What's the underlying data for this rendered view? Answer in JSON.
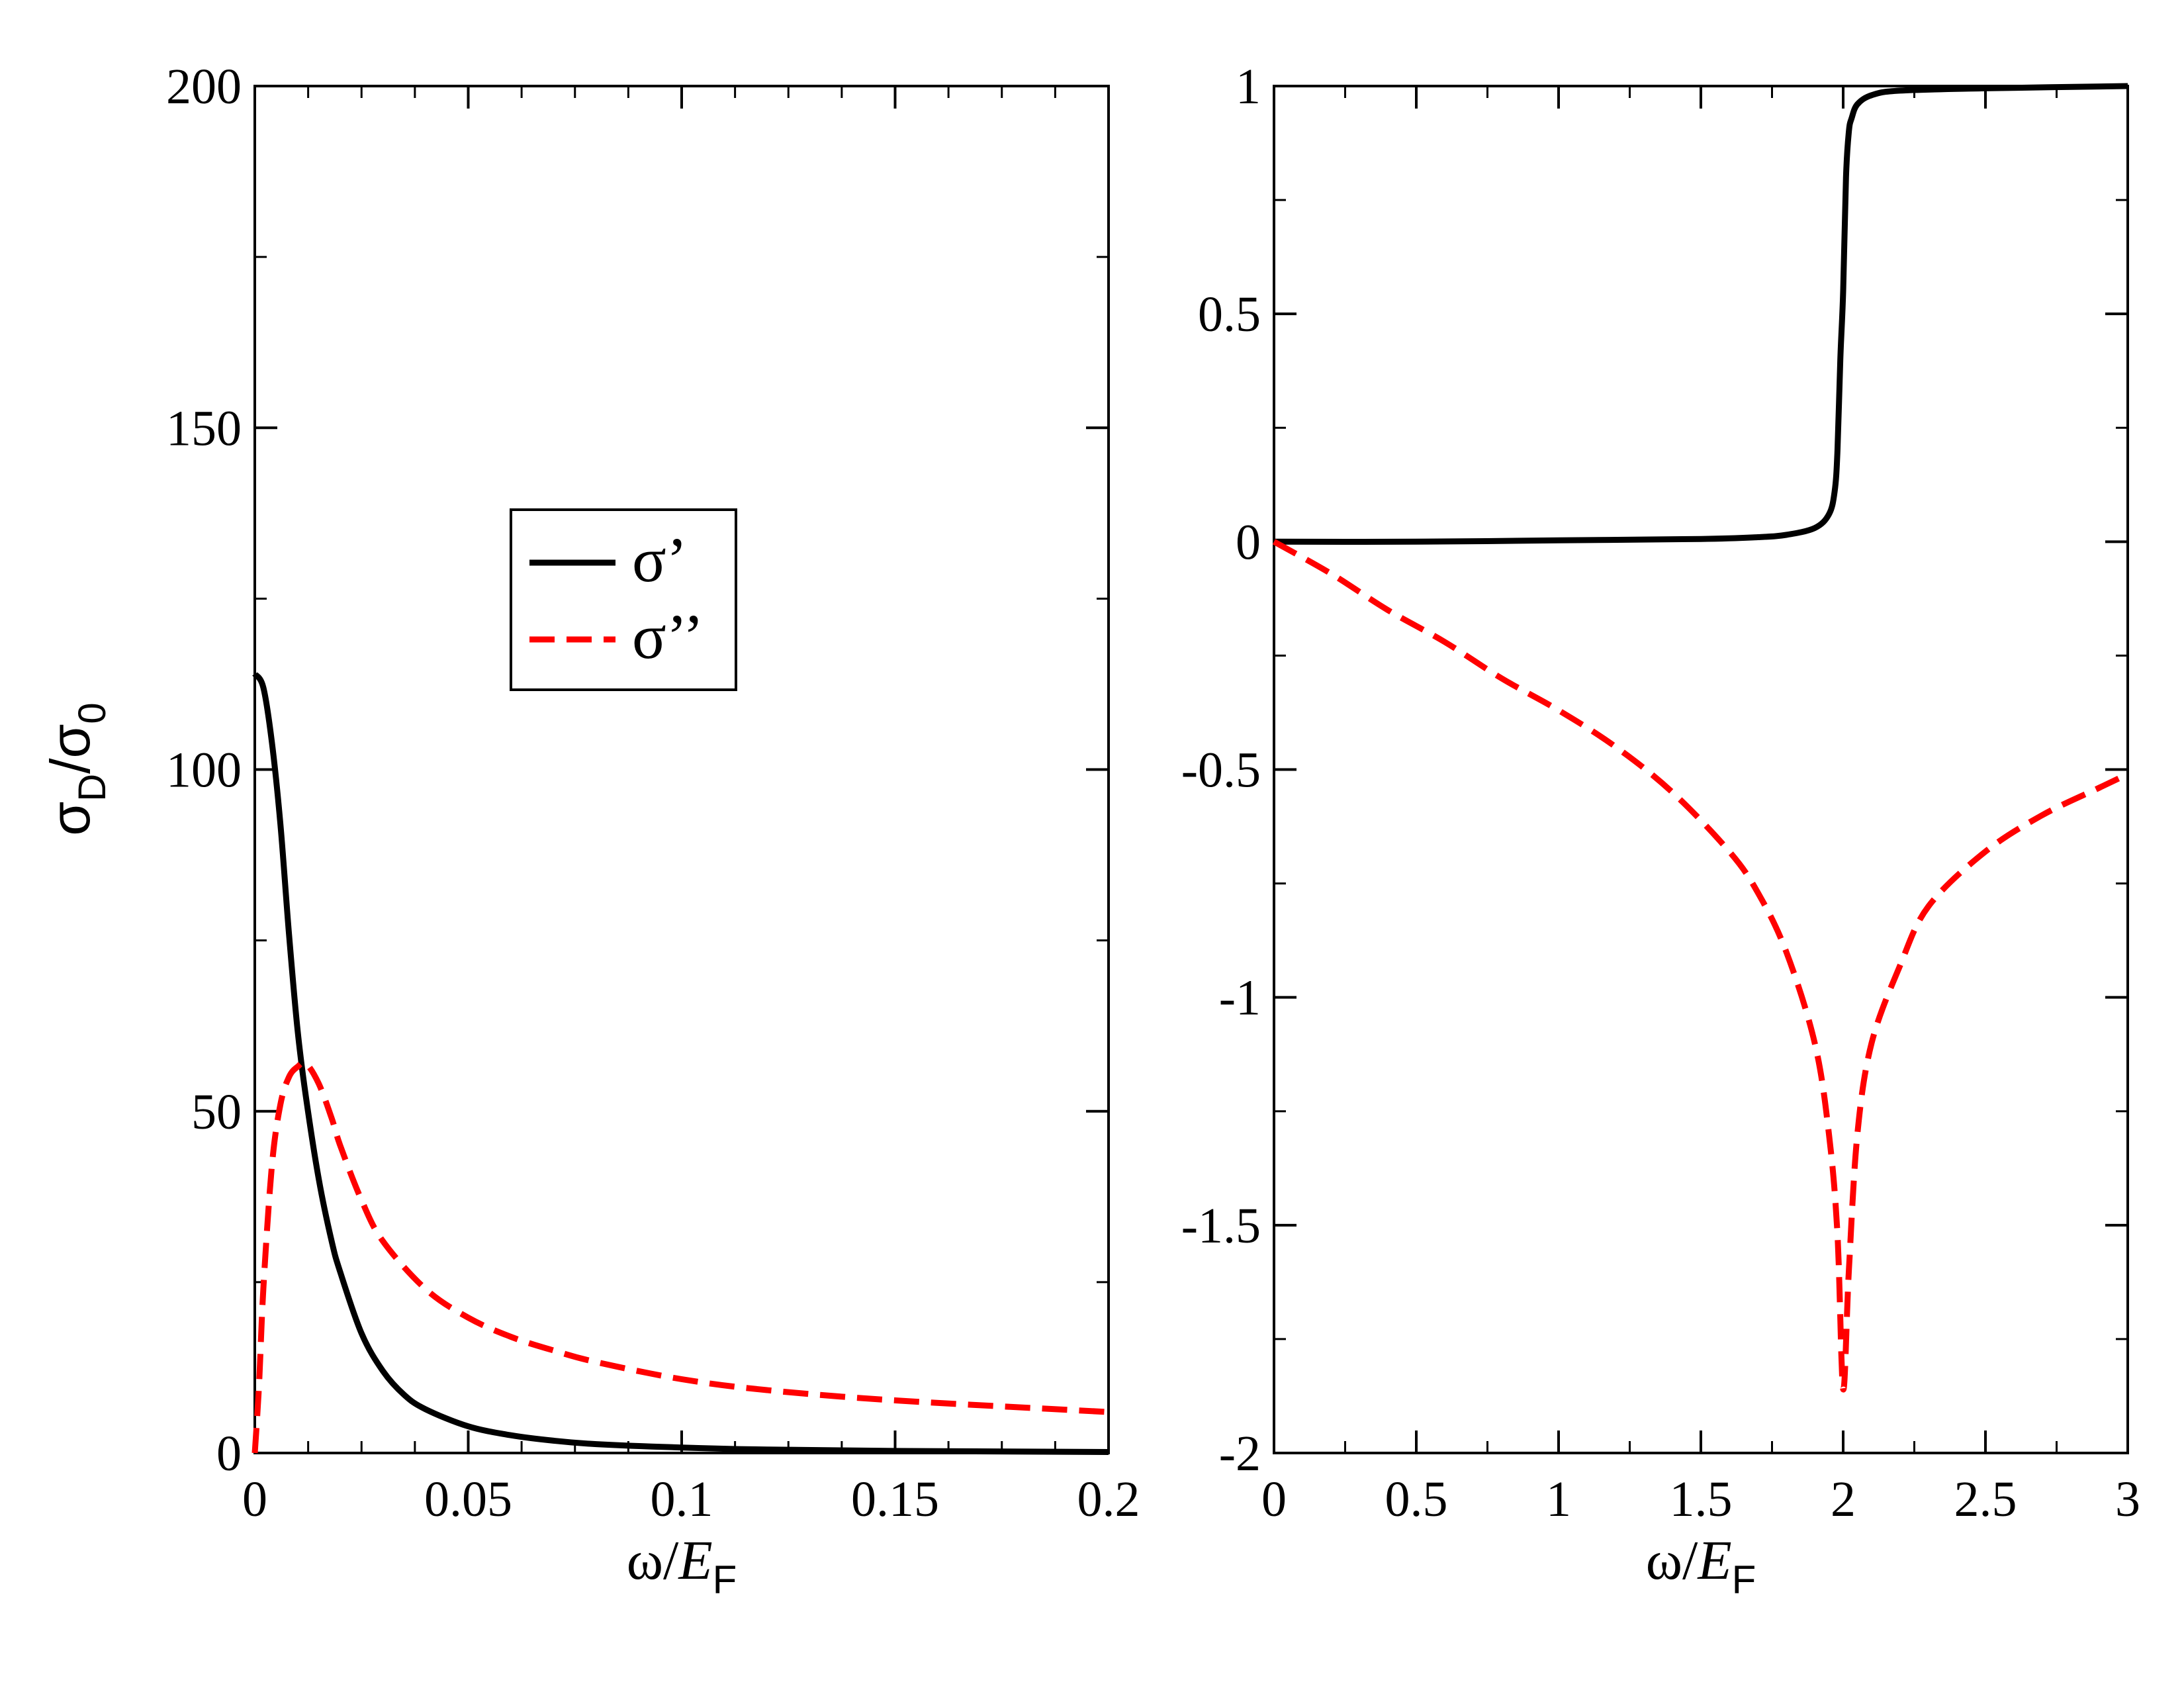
{
  "chart_data": [
    {
      "type": "line",
      "panel": "left",
      "xlabel": {
        "main": "ω/",
        "italic": "E",
        "sub": "F"
      },
      "ylabel": {
        "main": "σ",
        "sub1": "D",
        "mid": "/σ",
        "sub2": "0"
      },
      "xlim": [
        0,
        0.2
      ],
      "ylim": [
        0,
        200
      ],
      "xticks": [
        0,
        0.05,
        0.1,
        0.15,
        0.2
      ],
      "xtick_labels": [
        "0",
        "0.05",
        "0.1",
        "0.15",
        "0.2"
      ],
      "yticks": [
        0,
        50,
        100,
        150,
        200
      ],
      "ytick_labels": [
        "0",
        "50",
        "100",
        "150",
        "200"
      ],
      "legend": {
        "position": "center",
        "entries": [
          "σ’",
          "σ’’"
        ]
      },
      "series": [
        {
          "name": "σ’",
          "color": "#000000",
          "style": "solid",
          "x": [
            0,
            0.002,
            0.004,
            0.006,
            0.008,
            0.01,
            0.012,
            0.015,
            0.018,
            0.02,
            0.025,
            0.03,
            0.035,
            0.04,
            0.05,
            0.06,
            0.07,
            0.08,
            0.1,
            0.12,
            0.15,
            0.2
          ],
          "y": [
            114,
            112,
            104,
            92,
            76,
            62,
            52,
            40,
            31,
            26.5,
            17.5,
            12,
            8.5,
            6.4,
            3.9,
            2.6,
            1.8,
            1.3,
            0.8,
            0.5,
            0.3,
            0.15
          ]
        },
        {
          "name": "σ’’",
          "color": "#ff0000",
          "style": "dashed",
          "x": [
            0,
            0.001,
            0.002,
            0.004,
            0.006,
            0.008,
            0.01,
            0.012,
            0.015,
            0.018,
            0.02,
            0.025,
            0.03,
            0.04,
            0.05,
            0.06,
            0.07,
            0.08,
            0.1,
            0.12,
            0.15,
            0.2
          ],
          "y": [
            0,
            10,
            24,
            42,
            51,
            55,
            56.5,
            57,
            54,
            49,
            45,
            37,
            31,
            24,
            19.8,
            17,
            15,
            13.3,
            10.8,
            9.2,
            7.7,
            6
          ]
        }
      ]
    },
    {
      "type": "line",
      "panel": "right",
      "xlabel": {
        "main": "ω/",
        "italic": "E",
        "sub": "F"
      },
      "ylabel": null,
      "xlim": [
        0,
        3
      ],
      "ylim": [
        -2,
        1
      ],
      "xticks": [
        0,
        0.5,
        1,
        1.5,
        2,
        2.5,
        3
      ],
      "xtick_labels": [
        "0",
        "0.5",
        "1",
        "1.5",
        "2",
        "2.5",
        "3"
      ],
      "yticks": [
        -2,
        -1.5,
        -1,
        -0.5,
        0,
        0.5,
        1
      ],
      "ytick_labels": [
        "-2",
        "-1.5",
        "-1",
        "-0.5",
        "0",
        "0.5",
        "1"
      ],
      "series": [
        {
          "name": "σ’",
          "color": "#000000",
          "style": "solid",
          "x": [
            0,
            0.5,
            1,
            1.5,
            1.7,
            1.8,
            1.9,
            1.95,
            1.97,
            1.98,
            1.99,
            2.0,
            2.01,
            2.02,
            2.03,
            2.05,
            2.1,
            2.2,
            2.5,
            3
          ],
          "y": [
            0,
            0,
            0.003,
            0.006,
            0.01,
            0.015,
            0.03,
            0.06,
            0.11,
            0.2,
            0.4,
            0.55,
            0.8,
            0.9,
            0.93,
            0.96,
            0.98,
            0.99,
            0.995,
            1
          ]
        },
        {
          "name": "σ’’",
          "color": "#ff0000",
          "style": "dashed",
          "x": [
            0,
            0.2,
            0.4,
            0.6,
            0.8,
            1.0,
            1.2,
            1.4,
            1.6,
            1.7,
            1.8,
            1.9,
            1.95,
            1.98,
            2.0,
            2.02,
            2.05,
            2.1,
            2.2,
            2.3,
            2.5,
            2.7,
            2.9,
            3.0
          ],
          "y": [
            0,
            -0.07,
            -0.15,
            -0.22,
            -0.3,
            -0.37,
            -0.45,
            -0.55,
            -0.68,
            -0.77,
            -0.9,
            -1.1,
            -1.3,
            -1.52,
            -1.86,
            -1.6,
            -1.3,
            -1.1,
            -0.93,
            -0.8,
            -0.68,
            -0.6,
            -0.54,
            -0.51
          ]
        }
      ]
    }
  ]
}
